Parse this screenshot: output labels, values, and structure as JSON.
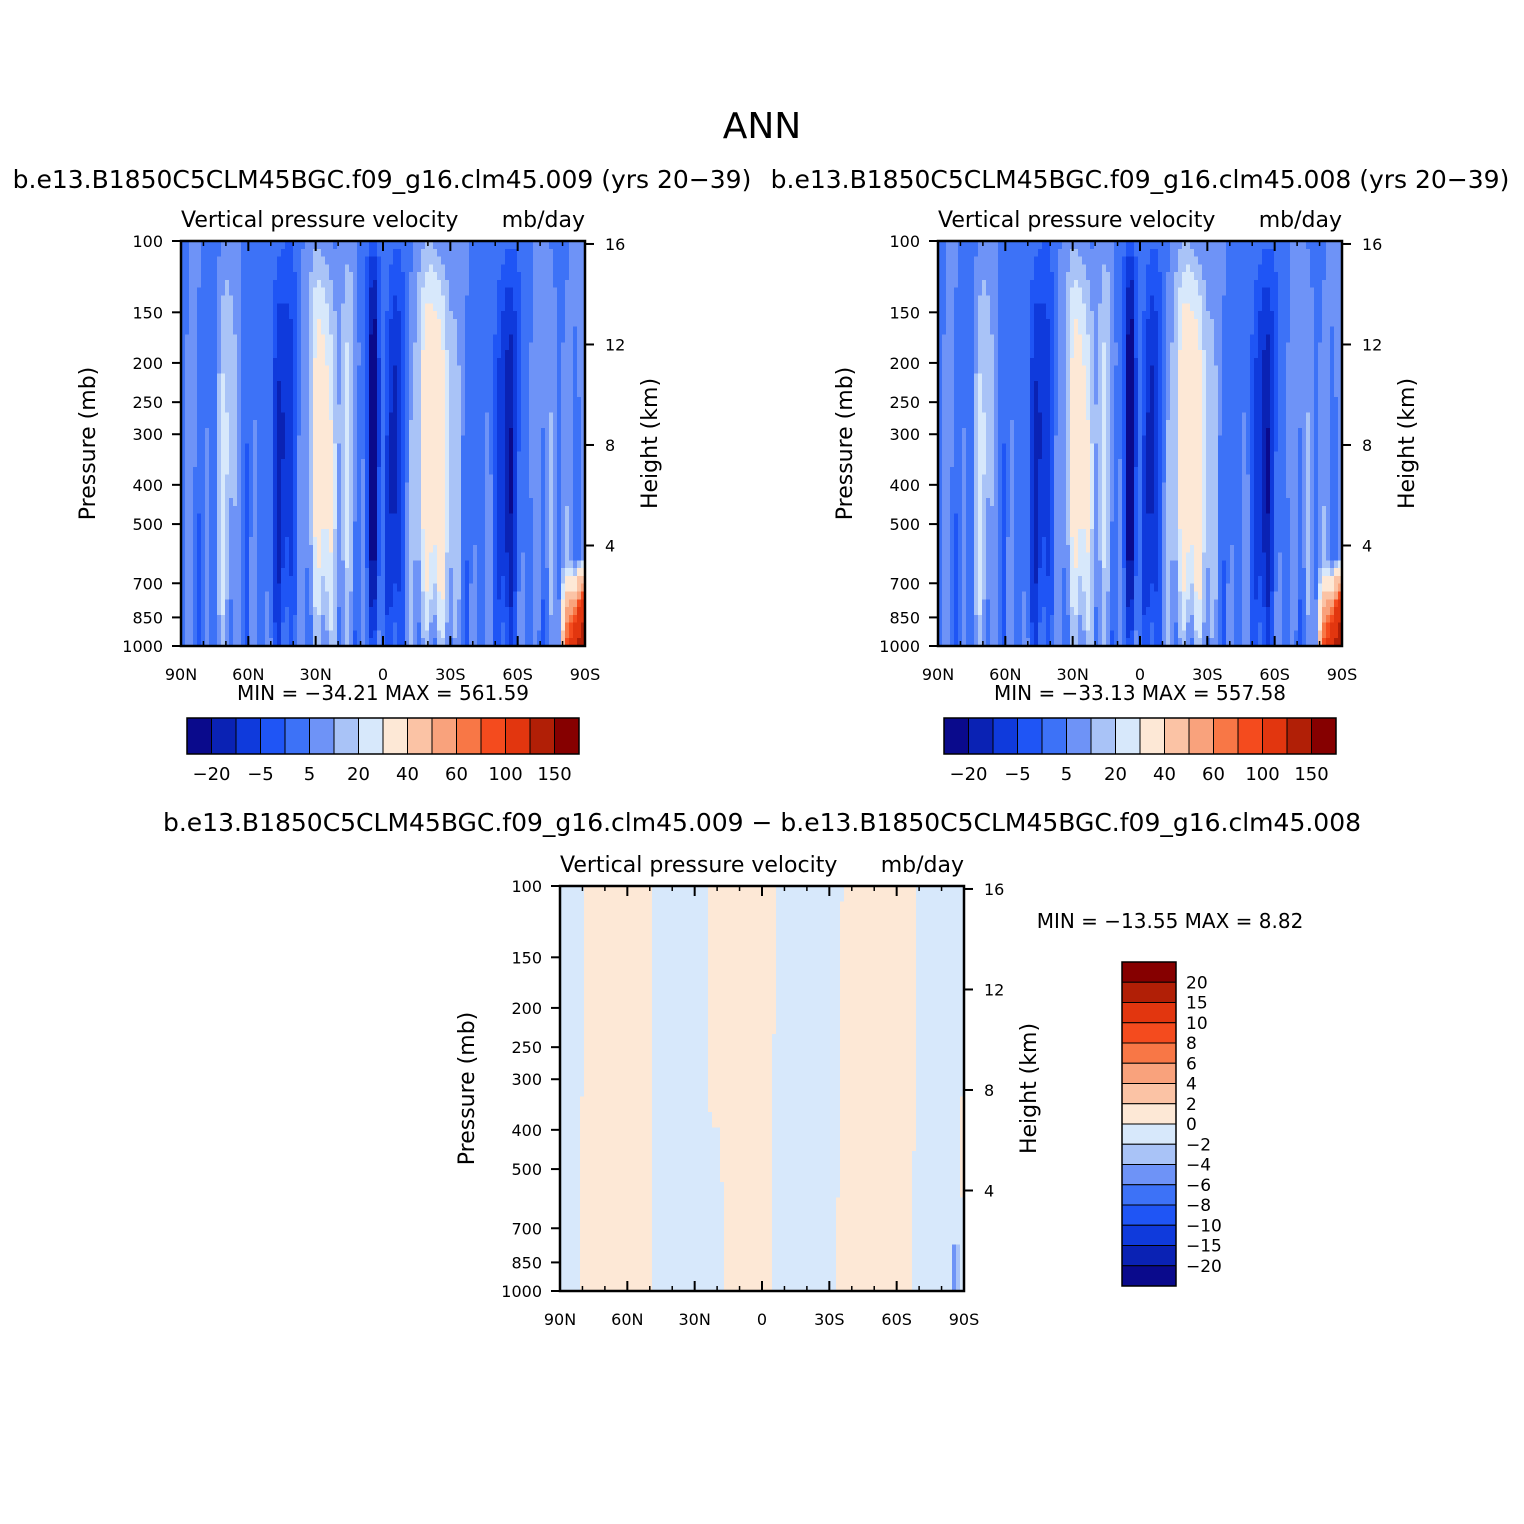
{
  "figure": {
    "title": "ANN"
  },
  "colors": {
    "field_levels": [
      "#0a0a8c",
      "#0a22b4",
      "#0f3adc",
      "#1f55f5",
      "#3d72f7",
      "#6e93f7",
      "#a9c3f7",
      "#d7e8fb",
      "#fde8d6",
      "#fbc3a5",
      "#f9a27c",
      "#f87746",
      "#f44b1e",
      "#e2360f",
      "#b11f06",
      "#860000"
    ],
    "diff_levels": [
      "#0a0a8c",
      "#0a22b4",
      "#0f3adc",
      "#1f55f5",
      "#3d72f7",
      "#6e93f7",
      "#a9c3f7",
      "#d7e8fb",
      "#fde8d6",
      "#fbc3a5",
      "#f9a27c",
      "#f87746",
      "#f44b1e",
      "#e2360f",
      "#b11f06",
      "#860000"
    ]
  },
  "chart_data": [
    {
      "type": "heatmap",
      "title": "b.e13.B1850C5CLM45BGC.f09_g16.clm45.009 (yrs 20−39)",
      "subtitle_left": "Vertical pressure velocity",
      "subtitle_right": "mb/day",
      "ylabel": "Pressure (mb)",
      "y2label": "Height (km)",
      "x_ticks": [
        "90N",
        "60N",
        "30N",
        "0",
        "30S",
        "60S",
        "90S"
      ],
      "x_values": [
        90,
        60,
        30,
        0,
        -30,
        -60,
        -90
      ],
      "y_ticks": [
        "100",
        "150",
        "200",
        "250",
        "300",
        "400",
        "500",
        "700",
        "850",
        "1000"
      ],
      "y_values": [
        100,
        150,
        200,
        250,
        300,
        400,
        500,
        700,
        850,
        1000
      ],
      "y_scale": "log",
      "y2_ticks": [
        "16",
        "12",
        "8",
        "4"
      ],
      "stats_text": "MIN = −34.21   MAX = 561.59",
      "min": -34.21,
      "max": 561.59,
      "colorbar_orientation": "horizontal",
      "colorbar_labels": [
        "−20",
        "−5",
        "5",
        "20",
        "40",
        "60",
        "100",
        "150"
      ],
      "colorbar_label_positions": [
        1,
        3,
        5,
        7,
        9,
        11,
        13,
        15
      ]
    },
    {
      "type": "heatmap",
      "title": "b.e13.B1850C5CLM45BGC.f09_g16.clm45.008 (yrs 20−39)",
      "subtitle_left": "Vertical pressure velocity",
      "subtitle_right": "mb/day",
      "ylabel": "Pressure (mb)",
      "y2label": "Height (km)",
      "x_ticks": [
        "90N",
        "60N",
        "30N",
        "0",
        "30S",
        "60S",
        "90S"
      ],
      "x_values": [
        90,
        60,
        30,
        0,
        -30,
        -60,
        -90
      ],
      "y_ticks": [
        "100",
        "150",
        "200",
        "250",
        "300",
        "400",
        "500",
        "700",
        "850",
        "1000"
      ],
      "y_values": [
        100,
        150,
        200,
        250,
        300,
        400,
        500,
        700,
        850,
        1000
      ],
      "y_scale": "log",
      "y2_ticks": [
        "16",
        "12",
        "8",
        "4"
      ],
      "stats_text": "MIN = −33.13   MAX = 557.58",
      "min": -33.13,
      "max": 557.58,
      "colorbar_orientation": "horizontal",
      "colorbar_labels": [
        "−20",
        "−5",
        "5",
        "20",
        "40",
        "60",
        "100",
        "150"
      ],
      "colorbar_label_positions": [
        1,
        3,
        5,
        7,
        9,
        11,
        13,
        15
      ]
    },
    {
      "type": "heatmap",
      "title": "b.e13.B1850C5CLM45BGC.f09_g16.clm45.009 − b.e13.B1850C5CLM45BGC.f09_g16.clm45.008",
      "subtitle_left": "Vertical pressure velocity",
      "subtitle_right": "mb/day",
      "ylabel": "Pressure (mb)",
      "y2label": "Height (km)",
      "x_ticks": [
        "90N",
        "60N",
        "30N",
        "0",
        "30S",
        "60S",
        "90S"
      ],
      "x_values": [
        90,
        60,
        30,
        0,
        -30,
        -60,
        -90
      ],
      "y_ticks": [
        "100",
        "150",
        "200",
        "250",
        "300",
        "400",
        "500",
        "700",
        "850",
        "1000"
      ],
      "y_values": [
        100,
        150,
        200,
        250,
        300,
        400,
        500,
        700,
        850,
        1000
      ],
      "y_scale": "log",
      "y2_ticks": [
        "16",
        "12",
        "8",
        "4"
      ],
      "stats_text": "MIN = −13.55   MAX =    8.82",
      "min": -13.55,
      "max": 8.82,
      "colorbar_orientation": "vertical",
      "colorbar_labels": [
        "20",
        "15",
        "10",
        "8",
        "6",
        "4",
        "2",
        "0",
        "−2",
        "−4",
        "−6",
        "−8",
        "−10",
        "−15",
        "−20"
      ]
    }
  ]
}
